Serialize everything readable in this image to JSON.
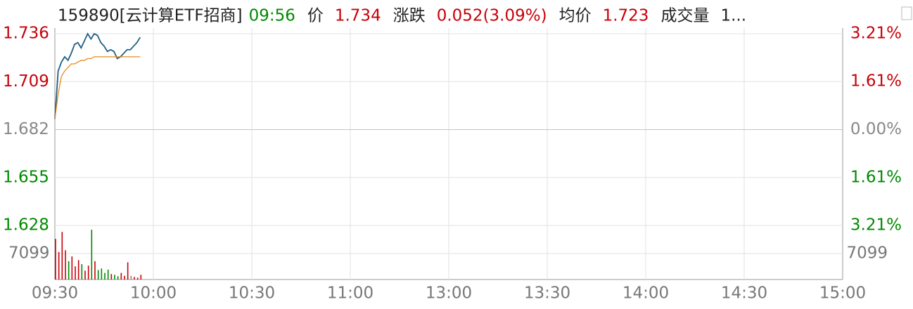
{
  "chart_data": {
    "type": "line",
    "title": "159890[云计算ETF招商]",
    "time": "09:56",
    "info": [
      {
        "label": "价",
        "value": 1.734
      },
      {
        "label": "涨跌",
        "value": "0.052(3.09%)"
      },
      {
        "label": "均价",
        "value": 1.723
      },
      {
        "label": "成交量",
        "value": "1..."
      }
    ],
    "x": [
      0,
      1,
      2,
      3,
      4,
      5,
      6,
      7,
      8,
      9,
      10,
      11,
      12,
      13,
      14,
      15,
      16,
      17,
      18,
      19,
      20,
      21,
      22,
      23,
      24,
      25,
      26
    ],
    "xlim": [
      0,
      240
    ],
    "xticks": [
      {
        "value": 0,
        "label": "09:30"
      },
      {
        "value": 30,
        "label": "10:00"
      },
      {
        "value": 60,
        "label": "10:30"
      },
      {
        "value": 90,
        "label": "11:00"
      },
      {
        "value": 120,
        "label": "13:00"
      },
      {
        "value": 150,
        "label": "13:30"
      },
      {
        "value": 180,
        "label": "14:00"
      },
      {
        "value": 210,
        "label": "14:30"
      },
      {
        "value": 240,
        "label": "15:00"
      }
    ],
    "ylim": [
      1.628,
      1.736
    ],
    "yticks": [
      1.736,
      1.709,
      1.682,
      1.655,
      1.628
    ],
    "y2lim": [
      -3.21,
      3.21
    ],
    "y2ticks": [
      {
        "value": 3.21,
        "label": "3.21%"
      },
      {
        "value": 1.61,
        "label": "1.61%"
      },
      {
        "value": 0,
        "label": "0.00%"
      },
      {
        "value": -1.61,
        "label": "1.61%"
      },
      {
        "value": -3.21,
        "label": "3.21%"
      }
    ],
    "series": [
      {
        "color": "#1f5f85",
        "values": [
          1.688,
          1.715,
          1.72,
          1.723,
          1.721,
          1.725,
          1.73,
          1.731,
          1.728,
          1.732,
          1.736,
          1.733,
          1.736,
          1.735,
          1.731,
          1.729,
          1.726,
          1.727,
          1.726,
          1.722,
          1.723,
          1.725,
          1.727,
          1.727,
          1.729,
          1.731,
          1.734
        ]
      },
      {
        "color": "#e8891b",
        "values": [
          1.688,
          1.702,
          1.712,
          1.715,
          1.717,
          1.719,
          1.719,
          1.72,
          1.721,
          1.721,
          1.722,
          1.722,
          1.723,
          1.723,
          1.723,
          1.723,
          1.723,
          1.723,
          1.723,
          1.723,
          1.723,
          1.723,
          1.723,
          1.723,
          1.723,
          1.723,
          1.723
        ]
      }
    ],
    "volume": {
      "ylim": [
        0,
        13046
      ],
      "yticks": [
        7099
      ],
      "values": [
        11100,
        7500,
        13000,
        8000,
        5000,
        6300,
        3600,
        5300,
        4200,
        2400,
        3800,
        13600,
        5000,
        2600,
        3000,
        1800,
        2700,
        1500,
        1300,
        900,
        1800,
        1000,
        4700,
        1000,
        700,
        500,
        1300
      ]
    },
    "up_color": "#c8000a",
    "down_color": "#008a00",
    "flat_color": "#888888",
    "grid": true
  }
}
